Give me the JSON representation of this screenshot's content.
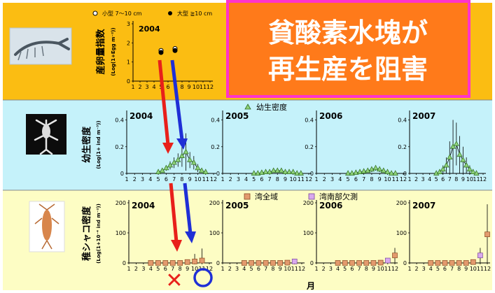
{
  "banner": {
    "line1": "貧酸素水塊が",
    "line2": "再生産を阻害"
  },
  "month_axis_label": "月",
  "band_colors": {
    "top": "#fbbd12",
    "middle": "#c5f2fa",
    "bottom": "#fdfdc4",
    "banner_fill": "#ff7a1a",
    "banner_border": "#ff33cc"
  },
  "egg_panel": {
    "year": "2004",
    "ylabel": "産卵量指数",
    "yunit": "(Log(1+Egg m⁻²))",
    "legend_small": "小型 7～10 cm",
    "legend_large": "大型 ≧10 cm",
    "yticks": [
      "0",
      "1",
      "2",
      "3"
    ],
    "xticks": [
      "1",
      "2",
      "3",
      "4",
      "5",
      "6",
      "7",
      "8",
      "9",
      "10",
      "11",
      "12"
    ],
    "chart_data": {
      "type": "scatter",
      "xlim": [
        1,
        12
      ],
      "ylim": [
        0,
        3
      ],
      "series": [
        {
          "name": "小型 7～10 cm",
          "x": [
            5,
            7
          ],
          "y": [
            1.6,
            1.7
          ]
        },
        {
          "name": "大型 ≧10 cm",
          "x": [
            5,
            7
          ],
          "y": [
            1.5,
            1.6
          ]
        }
      ]
    }
  },
  "larva": {
    "ylabel": "幼生密度",
    "yunit": "(Log(1+ ind m⁻³))",
    "legend": "幼生密度",
    "yticks": [
      "0",
      "0.2",
      "0.4"
    ],
    "xticks": [
      "1",
      "2",
      "3",
      "4",
      "5",
      "6",
      "7",
      "8",
      "9",
      "10",
      "11",
      "12"
    ],
    "panels": [
      {
        "year": "2004",
        "chart_data": {
          "type": "line",
          "xlim": [
            1,
            12
          ],
          "ylim": [
            0,
            0.45
          ],
          "x": [
            5,
            5.5,
            6,
            6.5,
            7,
            7.5,
            8,
            8.5,
            9,
            9.5,
            10,
            10.5,
            11
          ],
          "y": [
            0.01,
            0.02,
            0.04,
            0.06,
            0.08,
            0.1,
            0.13,
            0.16,
            0.1,
            0.08,
            0.04,
            0.02,
            0.01
          ],
          "err": [
            0,
            0.01,
            0.02,
            0.03,
            0.04,
            0.05,
            0.08,
            0.14,
            0.06,
            0.05,
            0.03,
            0.01,
            0
          ]
        }
      },
      {
        "year": "2005",
        "chart_data": {
          "type": "line",
          "xlim": [
            1,
            12
          ],
          "ylim": [
            0,
            0.45
          ],
          "x": [
            5,
            5.5,
            6,
            6.5,
            7,
            7.5,
            8,
            8.5,
            9,
            9.5,
            10,
            10.5,
            11
          ],
          "y": [
            0,
            0,
            0.005,
            0.01,
            0.01,
            0.02,
            0.02,
            0.02,
            0.01,
            0.01,
            0.01,
            0,
            0
          ],
          "err": [
            0,
            0,
            0,
            0.005,
            0.005,
            0.01,
            0.01,
            0.01,
            0.005,
            0.005,
            0,
            0,
            0
          ]
        }
      },
      {
        "year": "2006",
        "chart_data": {
          "type": "line",
          "xlim": [
            1,
            12
          ],
          "ylim": [
            0,
            0.45
          ],
          "x": [
            5,
            5.5,
            6,
            6.5,
            7,
            7.5,
            8,
            8.5,
            9,
            9.5,
            10,
            10.5,
            11
          ],
          "y": [
            0,
            0,
            0.005,
            0.01,
            0.015,
            0.02,
            0.03,
            0.04,
            0.03,
            0.02,
            0.01,
            0,
            0
          ],
          "err": [
            0,
            0,
            0,
            0.005,
            0.01,
            0.01,
            0.02,
            0.02,
            0.02,
            0.01,
            0.005,
            0,
            0
          ]
        }
      },
      {
        "year": "2007",
        "chart_data": {
          "type": "line",
          "xlim": [
            1,
            12
          ],
          "ylim": [
            0,
            0.45
          ],
          "x": [
            5,
            5.5,
            6,
            6.5,
            7,
            7.5,
            8,
            8.5,
            9,
            9.5,
            10,
            10.5,
            11
          ],
          "y": [
            0,
            0.01,
            0.03,
            0.06,
            0.12,
            0.2,
            0.22,
            0.14,
            0.1,
            0.06,
            0.03,
            0.01,
            0
          ],
          "err": [
            0,
            0.01,
            0.03,
            0.06,
            0.12,
            0.2,
            0.16,
            0.14,
            0.1,
            0.06,
            0.03,
            0.01,
            0
          ]
        }
      }
    ]
  },
  "juvenile": {
    "ylabel": "稚シャコ密度",
    "yunit": "(Log(1+10⁻⁴ ind m⁻²))",
    "legend_all": "湾全域",
    "legend_south": "湾南部欠測",
    "yticks": [
      "0",
      "100",
      "200"
    ],
    "xticks": [
      "1",
      "2",
      "3",
      "4",
      "5",
      "6",
      "7",
      "8",
      "9",
      "10",
      "11",
      "12"
    ],
    "panels": [
      {
        "year": "2004",
        "chart_data": {
          "type": "scatter",
          "xlim": [
            1,
            12
          ],
          "ylim": [
            0,
            200
          ],
          "series": [
            {
              "name": "湾全域",
              "x": [
                4,
                5,
                6,
                7,
                8,
                9,
                10,
                11
              ],
              "y": [
                0,
                0,
                0,
                0,
                0,
                3,
                5,
                8
              ],
              "err": [
                0,
                0,
                0,
                0,
                0,
                5,
                25,
                40
              ]
            },
            {
              "name": "湾南部欠測",
              "x": [],
              "y": [],
              "err": []
            }
          ]
        }
      },
      {
        "year": "2005",
        "chart_data": {
          "type": "scatter",
          "xlim": [
            1,
            12
          ],
          "ylim": [
            0,
            200
          ],
          "series": [
            {
              "name": "湾全域",
              "x": [
                4,
                5,
                6,
                7,
                8,
                9,
                10
              ],
              "y": [
                0,
                0,
                0,
                0,
                0,
                0,
                1
              ],
              "err": [
                0,
                0,
                0,
                0,
                0,
                0,
                0
              ]
            },
            {
              "name": "湾南部欠測",
              "x": [
                11
              ],
              "y": [
                5
              ],
              "err": [
                3
              ]
            }
          ]
        }
      },
      {
        "year": "2006",
        "chart_data": {
          "type": "scatter",
          "xlim": [
            1,
            12
          ],
          "ylim": [
            0,
            200
          ],
          "series": [
            {
              "name": "湾全域",
              "x": [
                4,
                5,
                6,
                7,
                8,
                9,
                10,
                12
              ],
              "y": [
                0,
                0,
                0,
                0,
                0,
                0,
                1,
                25
              ],
              "err": [
                0,
                0,
                0,
                0,
                0,
                0,
                0,
                25
              ]
            },
            {
              "name": "湾南部欠測",
              "x": [
                11
              ],
              "y": [
                8
              ],
              "err": [
                5
              ]
            }
          ]
        }
      },
      {
        "year": "2007",
        "chart_data": {
          "type": "scatter",
          "xlim": [
            1,
            12
          ],
          "ylim": [
            0,
            200
          ],
          "series": [
            {
              "name": "湾全域",
              "x": [
                4,
                5,
                6,
                7,
                8,
                9,
                10,
                12
              ],
              "y": [
                0,
                0,
                0,
                0,
                0,
                0,
                3,
                95
              ],
              "err": [
                0,
                0,
                0,
                0,
                0,
                0,
                5,
                100
              ]
            },
            {
              "name": "湾南部欠測",
              "x": [
                11
              ],
              "y": [
                25
              ],
              "err": [
                25
              ]
            }
          ]
        }
      }
    ]
  },
  "annotations": {
    "bad_mark": "✕"
  }
}
